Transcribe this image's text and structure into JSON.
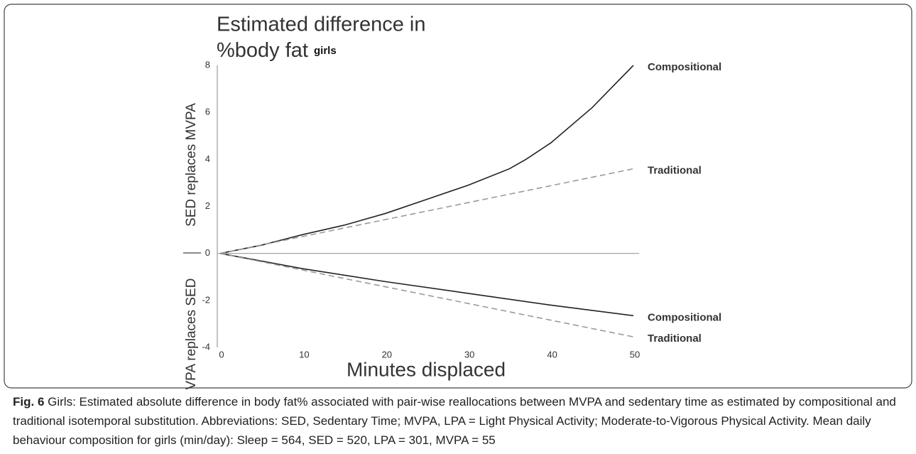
{
  "chart_data": {
    "type": "line",
    "title_lines": [
      "Estimated difference in",
      "%body fat"
    ],
    "subtitle": "girls",
    "x_label": "Minutes displaced",
    "y_label_upper": "SED replaces MVPA",
    "y_label_lower": "MVPA replaces SED",
    "xlim": [
      0,
      50
    ],
    "xticks": [
      0,
      10,
      20,
      30,
      40,
      50
    ],
    "ylim": [
      -4,
      8
    ],
    "yticks": [
      -4,
      -2,
      0,
      2,
      4,
      6,
      8
    ],
    "grid": false,
    "series": [
      {
        "name": "Compositional",
        "color": "#222222",
        "dash": false,
        "x": [
          0,
          5,
          10,
          15,
          20,
          25,
          30,
          35,
          37,
          40,
          45,
          50
        ],
        "values": [
          0,
          0.35,
          0.8,
          1.2,
          1.7,
          2.3,
          2.9,
          3.6,
          4.0,
          4.7,
          6.2,
          8.0
        ]
      },
      {
        "name": "Traditional",
        "color": "#9a9a9a",
        "dash": true,
        "x": [
          0,
          50
        ],
        "values": [
          0,
          3.6
        ]
      },
      {
        "name": "Compositional",
        "color": "#222222",
        "dash": false,
        "x": [
          0,
          10,
          20,
          30,
          40,
          50
        ],
        "values": [
          0,
          -0.65,
          -1.2,
          -1.7,
          -2.2,
          -2.65
        ]
      },
      {
        "name": "Traditional",
        "color": "#9a9a9a",
        "dash": true,
        "x": [
          0,
          50
        ],
        "values": [
          0,
          -3.55
        ]
      }
    ]
  },
  "caption": {
    "label": "Fig. 6",
    "text": "Girls: Estimated absolute difference in body fat% associated with pair-wise reallocations between MVPA and sedentary time as estimated by compositional and traditional isotemporal substitution. Abbreviations: SED, Sedentary Time; MVPA, LPA = Light Physical Activity; Moderate-to-Vigorous Physical Activity. Mean daily behaviour composition for girls (min/day): Sleep = 564, SED = 520, LPA = 301, MVPA = 55"
  }
}
